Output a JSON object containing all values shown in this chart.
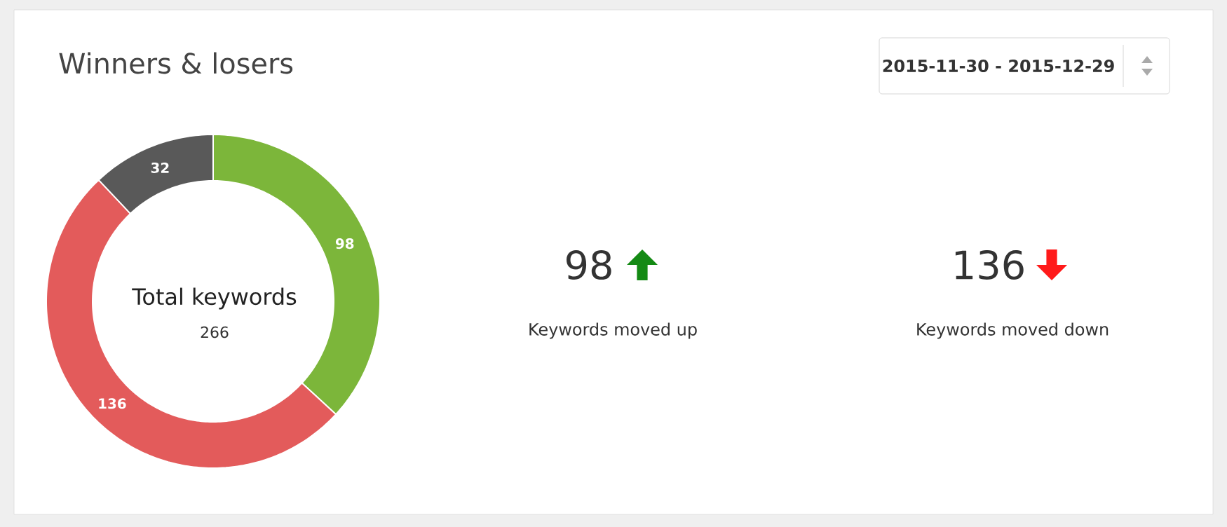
{
  "chart_data": {
    "type": "donut",
    "title": "Winners & losers",
    "categories": [
      null,
      null,
      null
    ],
    "values": [
      98,
      136,
      32
    ],
    "colors": [
      "#7cb63a",
      "#e35b5b",
      "#595959"
    ],
    "data_labels": true,
    "annotations": [
      "2015-11-30 - 2015-12-29",
      "Total keywords",
      "266",
      "98",
      "Keywords moved up",
      "136",
      "Keywords moved down"
    ]
  }
}
